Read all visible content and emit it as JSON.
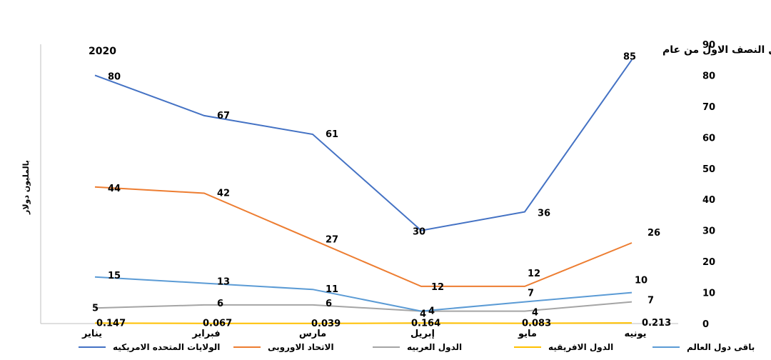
{
  "chart_data": {
    "type": "line",
    "title_line1": "صادرات الملابس الجاهزه وفقاً للمجموعات الدوليه خلال النصف الاول من عام",
    "title_line2": "2020",
    "ylabel": "بالمليون دولار",
    "categories": [
      "يناير",
      "فبراير",
      "مارس",
      "إبريل",
      "مايو",
      "يونيه"
    ],
    "ylim": [
      0,
      90
    ],
    "yticks": [
      "0",
      "10",
      "20",
      "30",
      "40",
      "50",
      "60",
      "70",
      "80",
      "90"
    ],
    "grid": false,
    "legend_position": "bottom",
    "series": [
      {
        "name": "الولايات المتحده الامريكيه",
        "color": "#4472C4",
        "values": [
          80,
          67,
          61,
          30,
          36,
          85
        ],
        "labels": [
          "80",
          "67",
          "61",
          "30",
          "36",
          "85"
        ]
      },
      {
        "name": "الاتحاد الاوروبى",
        "color": "#ED7D31",
        "values": [
          44,
          42,
          27,
          12,
          12,
          26
        ],
        "labels": [
          "44",
          "42",
          "27",
          "12",
          "12",
          "26"
        ]
      },
      {
        "name": "الدول العربيه",
        "color": "#A5A5A5",
        "values": [
          5,
          6,
          6,
          4,
          4,
          7
        ],
        "labels": [
          "5",
          "6",
          "6",
          "4",
          "4",
          "7"
        ]
      },
      {
        "name": "الدول الافريقيه",
        "color": "#FFC000",
        "values": [
          0.147,
          0.067,
          0.039,
          0.164,
          0.083,
          0.213
        ],
        "labels": [
          "0.147",
          "0.067",
          "0.039",
          "0.164",
          "0.083",
          "0.213"
        ]
      },
      {
        "name": "باقى دول العالم",
        "color": "#5B9BD5",
        "values": [
          15,
          13,
          11,
          4,
          7,
          10
        ],
        "labels": [
          "15",
          "13",
          "11",
          "4",
          "7",
          "10"
        ]
      }
    ]
  }
}
